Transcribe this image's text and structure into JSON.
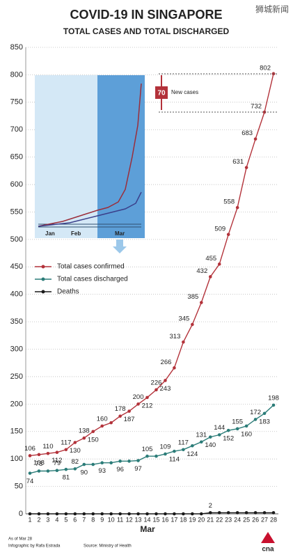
{
  "chart_data": {
    "type": "line",
    "title": "COVID-19 IN SINGAPORE",
    "subtitle": "TOTAL CASES AND TOTAL DISCHARGED",
    "watermark": "狮城新闻",
    "x_label": "Mar",
    "categories": [
      "1",
      "2",
      "3",
      "4",
      "5",
      "6",
      "7",
      "8",
      "9",
      "10",
      "11",
      "12",
      "13",
      "14",
      "15",
      "16",
      "17",
      "18",
      "19",
      "20",
      "21",
      "22",
      "23",
      "24",
      "25",
      "26",
      "27",
      "28"
    ],
    "series": [
      {
        "name": "Total cases confirmed",
        "color": "#b3323a",
        "values": [
          106,
          108,
          110,
          112,
          117,
          130,
          138,
          150,
          160,
          166,
          178,
          187,
          200,
          212,
          226,
          243,
          266,
          313,
          345,
          385,
          432,
          455,
          509,
          558,
          631,
          683,
          732,
          802
        ],
        "value_labels": [
          "106",
          "108",
          "110",
          "112",
          "117",
          "130",
          "138",
          "150",
          "160",
          null,
          "178",
          "187",
          "200",
          "212",
          "226",
          "243",
          "266",
          "313",
          "345",
          "385",
          "432",
          "455",
          "509",
          "558",
          "631",
          "683",
          "732",
          "802"
        ]
      },
      {
        "name": "Total cases discharged",
        "color": "#2b7c78",
        "values": [
          74,
          78,
          78,
          79,
          81,
          82,
          90,
          90,
          93,
          93,
          96,
          96,
          97,
          105,
          105,
          109,
          114,
          117,
          124,
          131,
          140,
          144,
          152,
          155,
          160,
          172,
          183,
          198
        ],
        "value_labels": [
          "74",
          "78",
          null,
          "79",
          "81",
          "82",
          "90",
          null,
          "93",
          null,
          "96",
          null,
          "97",
          "105",
          null,
          "109",
          "114",
          "117",
          "124",
          "131",
          "140",
          "144",
          "152",
          "155",
          "160",
          "172",
          "183",
          "198"
        ]
      },
      {
        "name": "Deaths",
        "color": "#1a1a1a",
        "values": [
          0,
          0,
          0,
          0,
          0,
          0,
          0,
          0,
          0,
          0,
          0,
          0,
          0,
          0,
          0,
          0,
          0,
          0,
          0,
          0,
          2,
          2,
          2,
          2,
          2,
          2,
          2,
          2
        ],
        "value_labels": [
          null,
          null,
          null,
          null,
          null,
          null,
          null,
          null,
          null,
          null,
          null,
          null,
          null,
          null,
          null,
          null,
          null,
          null,
          null,
          null,
          "2",
          null,
          null,
          null,
          null,
          null,
          null,
          null
        ]
      }
    ],
    "ylim": [
      0,
      850
    ],
    "yticks": [
      0,
      50,
      100,
      150,
      200,
      250,
      300,
      350,
      400,
      450,
      500,
      550,
      600,
      650,
      700,
      750,
      800,
      850
    ],
    "grid": true,
    "annotation": {
      "value": 70,
      "text": "New cases"
    },
    "inset_labels": [
      "Jan",
      "Feb",
      "Mar"
    ],
    "footnotes": [
      "As of Mar 28",
      "Infographic by Rafa Estrada",
      "Source: Ministry of Health"
    ],
    "logo": "cna"
  }
}
